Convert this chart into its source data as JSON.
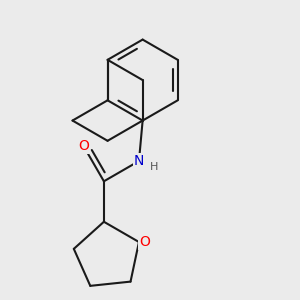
{
  "bg_color": "#ebebeb",
  "bond_color": "#1a1a1a",
  "bond_width": 1.5,
  "atom_colors": {
    "O": "#ff0000",
    "N": "#0000cc",
    "H": "#555555",
    "C": "#1a1a1a"
  },
  "font_size_atom": 10,
  "font_size_h": 8,
  "xlim": [
    -1.6,
    2.4
  ],
  "ylim": [
    -2.1,
    1.9
  ]
}
